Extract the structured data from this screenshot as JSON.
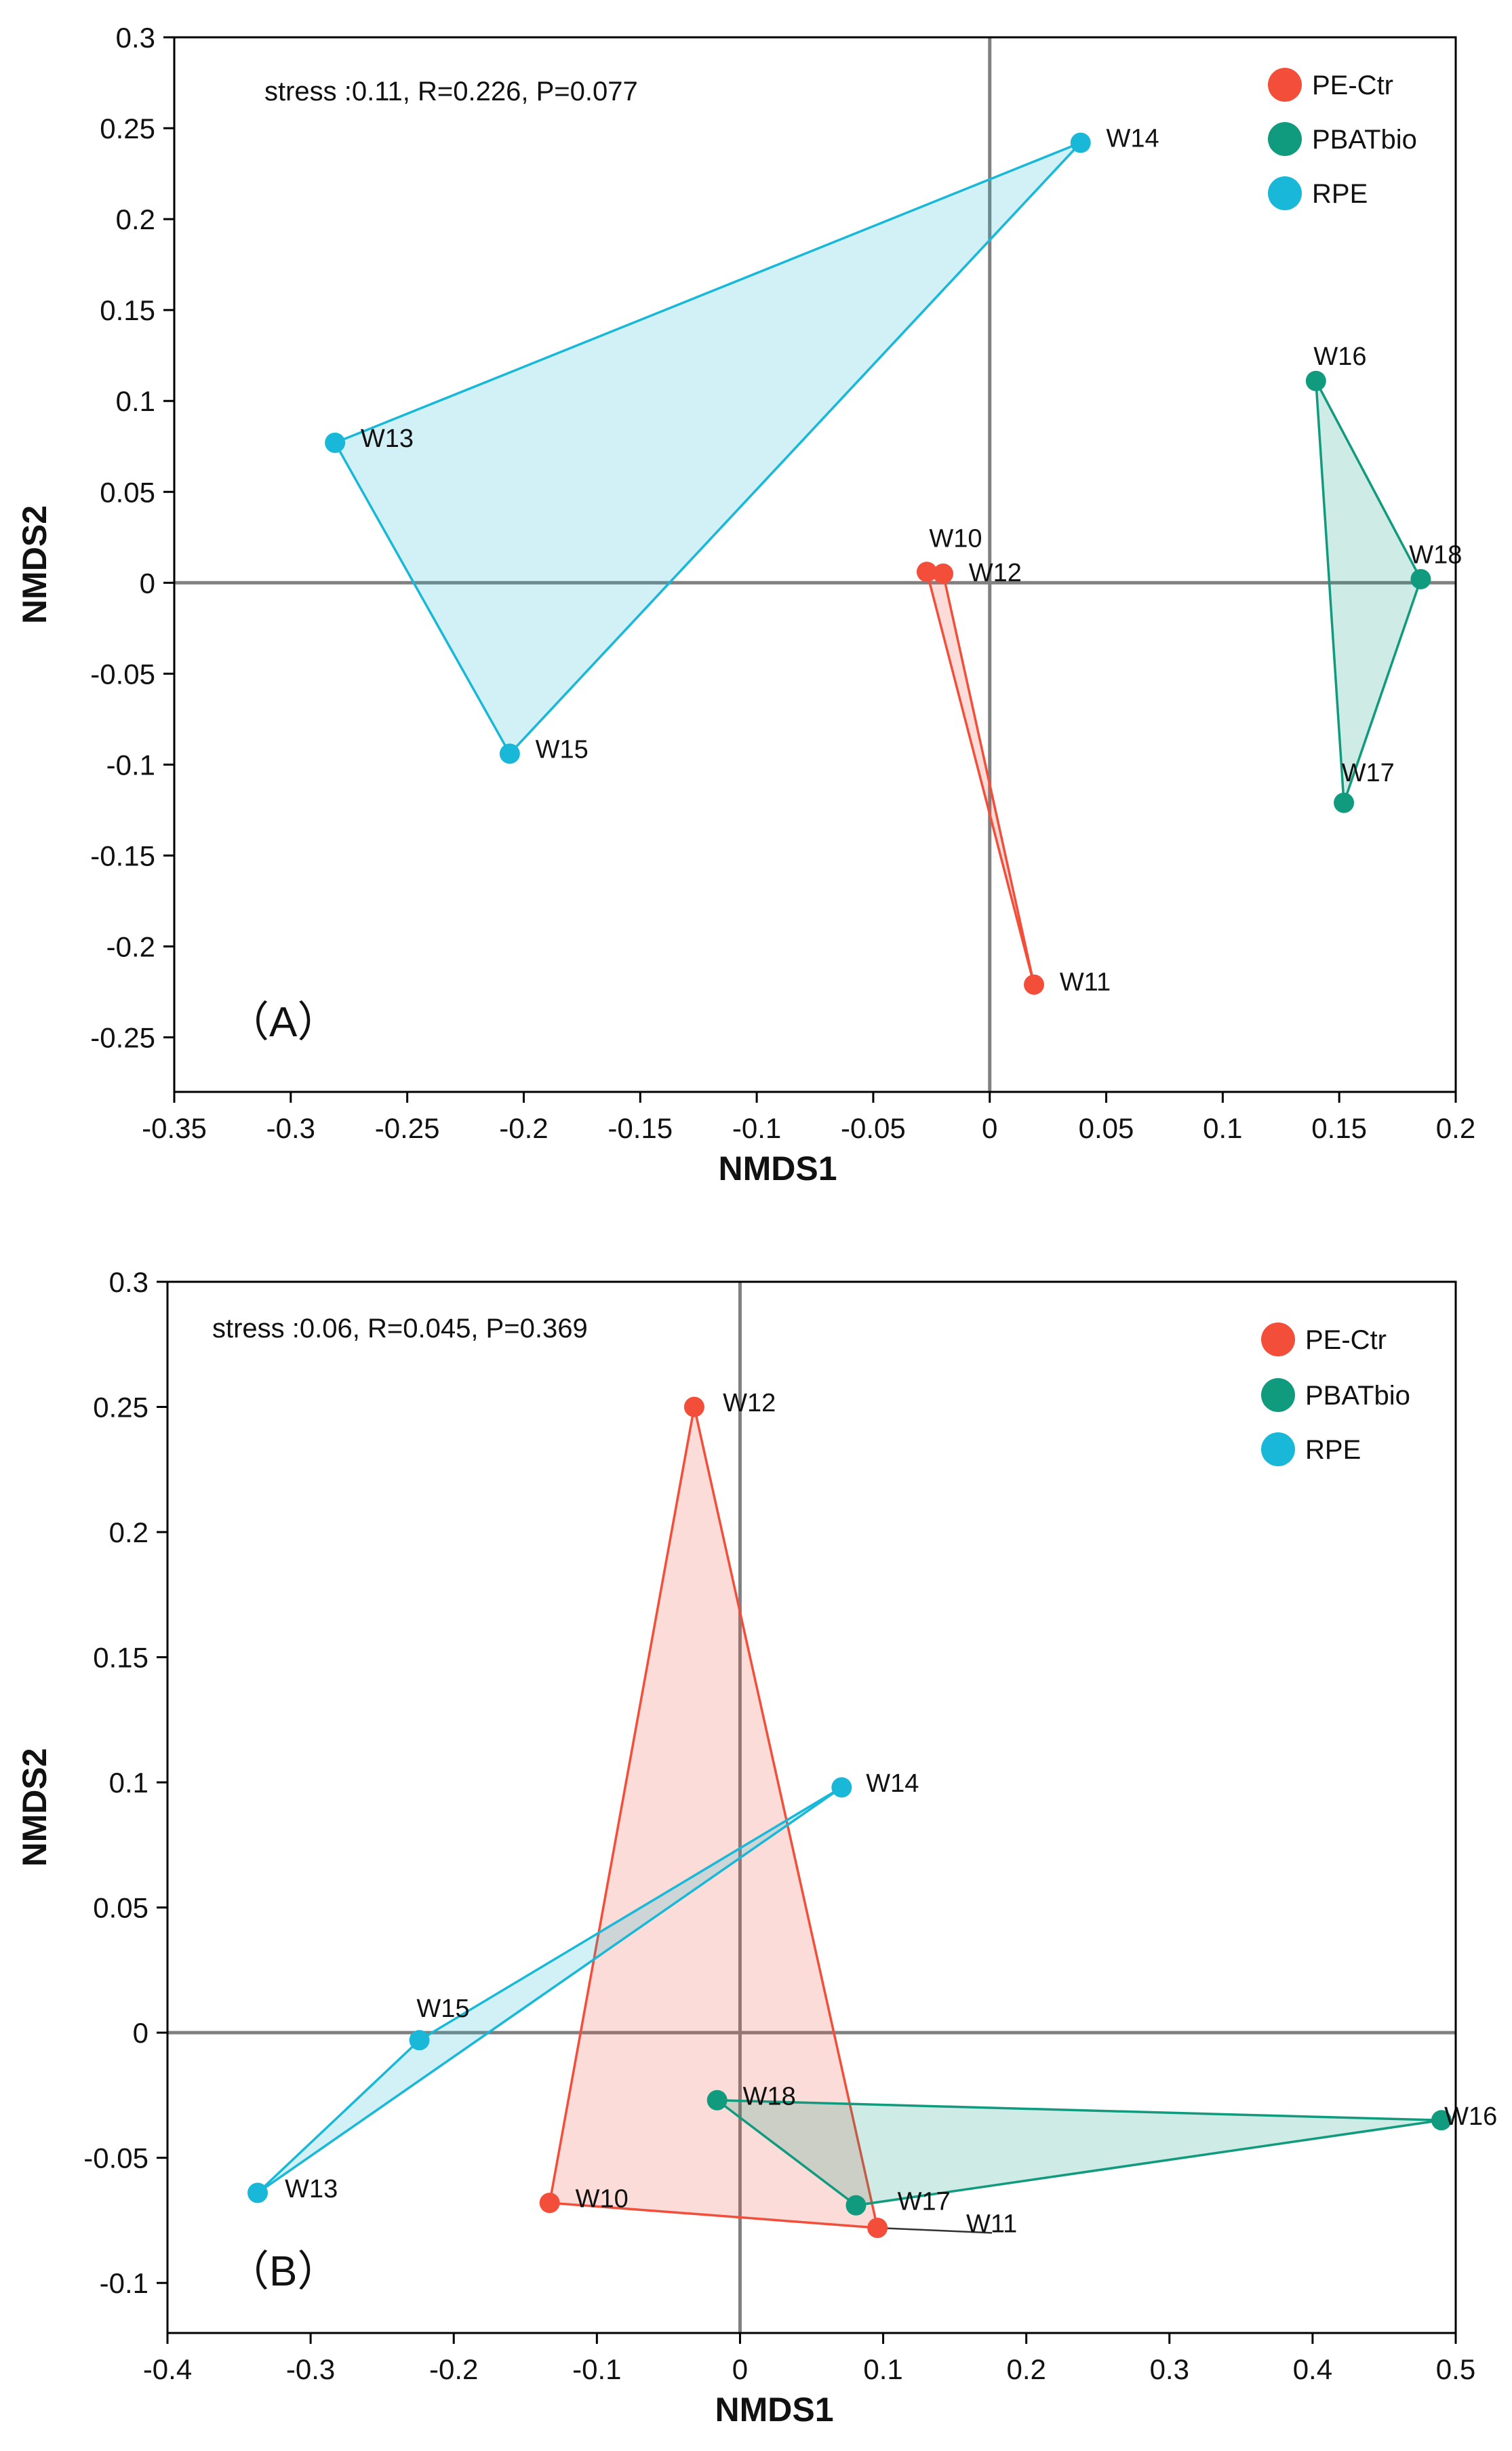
{
  "colors": {
    "PE-Ctr": "#f24e3a",
    "PBATbio": "#109a7e",
    "RPE": "#1ab8d8",
    "axis": "#000000",
    "zero_line": "#808080"
  },
  "chart_data": [
    {
      "type": "scatter",
      "panel_label": "（A）",
      "stats": "stress :0.11, R=0.226, P=0.077",
      "xlabel": "NMDS1",
      "ylabel": "NMDS2",
      "xlim": [
        -0.35,
        0.2
      ],
      "ylim": [
        -0.28,
        0.3
      ],
      "xticks": [
        -0.35,
        -0.3,
        -0.25,
        -0.2,
        -0.15,
        -0.1,
        -0.05,
        0,
        0.05,
        0.1,
        0.15,
        0.2
      ],
      "xtick_labels": [
        "-0.35",
        "-0.3",
        "-0.25",
        "-0.2",
        "-0.15",
        "-0.1",
        "-0.05",
        "0",
        "0.05",
        "0.1",
        "0.15",
        "0.2"
      ],
      "yticks": [
        -0.25,
        -0.2,
        -0.15,
        -0.1,
        -0.05,
        0,
        0.05,
        0.1,
        0.15,
        0.2,
        0.25,
        0.3
      ],
      "ytick_labels": [
        "-0.25",
        "-0.2",
        "-0.15",
        "-0.1",
        "-0.05",
        "0",
        "0.05",
        "0.1",
        "0.15",
        "0.2",
        "0.25",
        "0.3"
      ],
      "legend": [
        "PE-Ctr",
        "PBATbio",
        "RPE"
      ],
      "legend_position": "top-right",
      "series": [
        {
          "name": "PE-Ctr",
          "points": [
            {
              "label": "W10",
              "x": -0.027,
              "y": 0.006,
              "lx": -0.026,
              "ly": 0.025
            },
            {
              "label": "W12",
              "x": -0.02,
              "y": 0.005,
              "lx": -0.009,
              "ly": 0.006
            },
            {
              "label": "W11",
              "x": 0.019,
              "y": -0.221,
              "lx": 0.03,
              "ly": -0.219
            }
          ]
        },
        {
          "name": "PBATbio",
          "points": [
            {
              "label": "W16",
              "x": 0.14,
              "y": 0.111,
              "lx": 0.139,
              "ly": 0.125
            },
            {
              "label": "W18",
              "x": 0.185,
              "y": 0.002,
              "lx": 0.18,
              "ly": 0.016
            },
            {
              "label": "W17",
              "x": 0.152,
              "y": -0.121,
              "lx": 0.151,
              "ly": -0.104
            }
          ]
        },
        {
          "name": "RPE",
          "points": [
            {
              "label": "W14",
              "x": 0.039,
              "y": 0.242,
              "lx": 0.05,
              "ly": 0.245
            },
            {
              "label": "W13",
              "x": -0.281,
              "y": 0.077,
              "lx": -0.27,
              "ly": 0.08
            },
            {
              "label": "W15",
              "x": -0.206,
              "y": -0.094,
              "lx": -0.195,
              "ly": -0.091
            }
          ]
        }
      ]
    },
    {
      "type": "scatter",
      "panel_label": "（B）",
      "stats": "stress :0.06, R=0.045, P=0.369",
      "xlabel": "NMDS1",
      "ylabel": "NMDS2",
      "xlim": [
        -0.4,
        0.5
      ],
      "ylim": [
        -0.12,
        0.3
      ],
      "xticks": [
        -0.4,
        -0.3,
        -0.2,
        -0.1,
        0,
        0.1,
        0.2,
        0.3,
        0.4,
        0.5
      ],
      "xtick_labels": [
        "-0.4",
        "-0.3",
        "-0.2",
        "-0.1",
        "0",
        "0.1",
        "0.2",
        "0.3",
        "0.4",
        "0.5"
      ],
      "yticks": [
        -0.1,
        -0.05,
        0,
        0.05,
        0.1,
        0.15,
        0.2,
        0.25,
        0.3
      ],
      "ytick_labels": [
        "-0.1",
        "-0.05",
        "0",
        "0.05",
        "0.1",
        "0.15",
        "0.2",
        "0.25",
        "0.3"
      ],
      "legend": [
        "PE-Ctr",
        "PBATbio",
        "RPE"
      ],
      "legend_position": "top-right",
      "series": [
        {
          "name": "PE-Ctr",
          "points": [
            {
              "label": "W12",
              "x": -0.032,
              "y": 0.25,
              "lx": -0.012,
              "ly": 0.252
            },
            {
              "label": "W10",
              "x": -0.133,
              "y": -0.068,
              "lx": -0.115,
              "ly": -0.066
            },
            {
              "label": "W11",
              "x": 0.096,
              "y": -0.078,
              "lx": 0.158,
              "ly": -0.076
            }
          ]
        },
        {
          "name": "PBATbio",
          "points": [
            {
              "label": "W18",
              "x": -0.016,
              "y": -0.027,
              "lx": 0.002,
              "ly": -0.025
            },
            {
              "label": "W16",
              "x": 0.49,
              "y": -0.035,
              "lx": 0.492,
              "ly": -0.033
            },
            {
              "label": "W17",
              "x": 0.081,
              "y": -0.069,
              "lx": 0.11,
              "ly": -0.067
            }
          ]
        },
        {
          "name": "RPE",
          "points": [
            {
              "label": "W14",
              "x": 0.071,
              "y": 0.098,
              "lx": 0.088,
              "ly": 0.1
            },
            {
              "label": "W15",
              "x": -0.224,
              "y": -0.003,
              "lx": -0.226,
              "ly": 0.01
            },
            {
              "label": "W13",
              "x": -0.337,
              "y": -0.064,
              "lx": -0.318,
              "ly": -0.062
            }
          ]
        }
      ]
    }
  ]
}
